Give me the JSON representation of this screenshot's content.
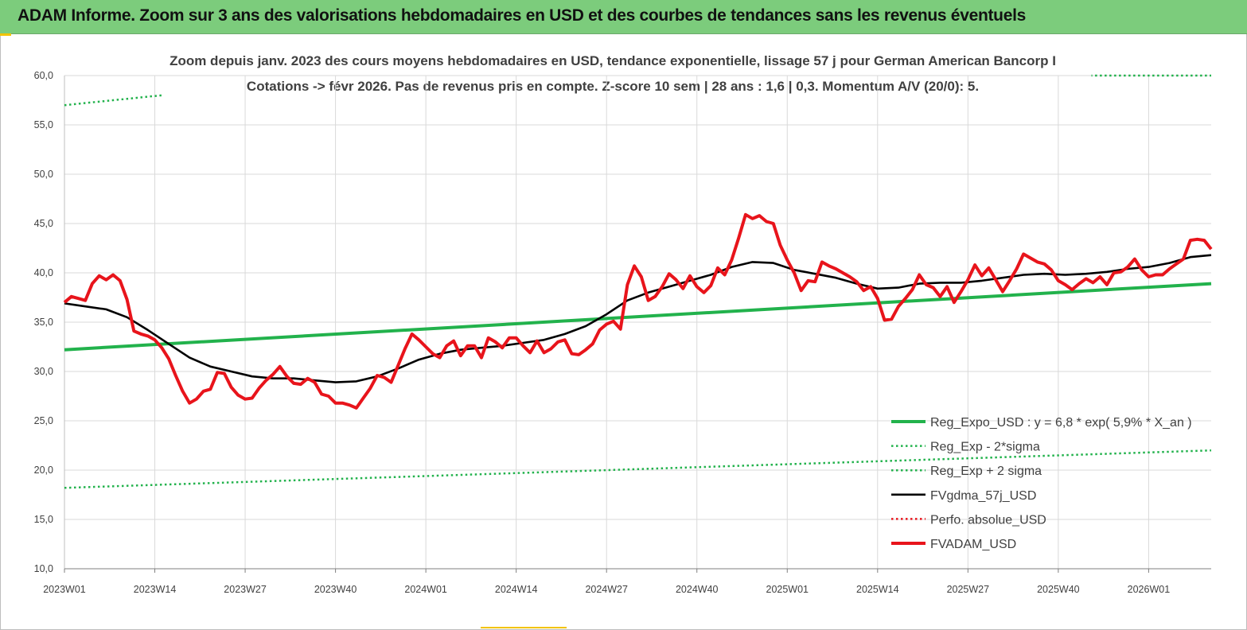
{
  "banner": {
    "title": "ADAM Informe. Zoom sur 3 ans des valorisations hebdomadaires en USD et des courbes de tendances sans les revenus éventuels"
  },
  "colors": {
    "banner_bg": "#7ccc7c",
    "trend": "#22b24c",
    "sigma": "#22b24c",
    "smoothed": "#000000",
    "price": "#e8141b",
    "perf": "#e8141b",
    "grid": "#d9d9d9"
  },
  "chart_data": {
    "type": "line",
    "title": "Zoom depuis janv. 2023 des cours moyens hebdomadaires en USD, tendance exponentielle, lissage 57 j pour German American Bancorp I",
    "subtitle": "Cotations -> févr 2026. Pas de revenus pris en compte. Z-score 10 sem | 28 ans : 1,6 | 0,3. Momentum A/V (20/0): 5.",
    "xlabel": "",
    "ylabel": "",
    "ylim": [
      10,
      60
    ],
    "yticks": [
      "10,0",
      "15,0",
      "20,0",
      "25,0",
      "30,0",
      "35,0",
      "40,0",
      "45,0",
      "50,0",
      "55,0",
      "60,0"
    ],
    "xticks": [
      {
        "label": "2023W01",
        "week": 0
      },
      {
        "label": "2023W14",
        "week": 13
      },
      {
        "label": "2023W27",
        "week": 26
      },
      {
        "label": "2023W40",
        "week": 39
      },
      {
        "label": "2024W01",
        "week": 52
      },
      {
        "label": "2024W14",
        "week": 65
      },
      {
        "label": "2024W27",
        "week": 78
      },
      {
        "label": "2024W40",
        "week": 91
      },
      {
        "label": "2025W01",
        "week": 104
      },
      {
        "label": "2025W14",
        "week": 117
      },
      {
        "label": "2025W27",
        "week": 130
      },
      {
        "label": "2025W40",
        "week": 143
      },
      {
        "label": "2026W01",
        "week": 156
      }
    ],
    "x_range_weeks": [
      0,
      165
    ],
    "grid": "vertical and horizontal",
    "legend_position": "bottom-right",
    "series": [
      {
        "name": "Reg_Expo_USD : y = 6,8 * exp( 5,9% * X_an )",
        "style": "solid-thick",
        "color": "#22b24c",
        "points": [
          [
            0,
            32.2
          ],
          [
            165,
            38.9
          ]
        ]
      },
      {
        "name": "Reg_Exp - 2*sigma",
        "style": "dotted",
        "color": "#22b24c",
        "points": [
          [
            0,
            18.2
          ],
          [
            165,
            22.0
          ]
        ]
      },
      {
        "name": "Reg_Exp + 2 sigma",
        "style": "dotted",
        "color": "#22b24c",
        "points": [
          [
            0,
            57.0
          ],
          [
            14,
            58.0
          ],
          [
            148,
            60.0
          ],
          [
            165,
            60.0
          ]
        ],
        "clip_windows": [
          [
            0,
            14
          ],
          [
            148,
            165
          ]
        ]
      },
      {
        "name": "FVgdma_57j_USD",
        "style": "solid",
        "color": "#000000",
        "points": [
          [
            0,
            36.9
          ],
          [
            3,
            36.6
          ],
          [
            6,
            36.3
          ],
          [
            9,
            35.5
          ],
          [
            12,
            34.2
          ],
          [
            15,
            32.8
          ],
          [
            18,
            31.4
          ],
          [
            21,
            30.5
          ],
          [
            24,
            30.0
          ],
          [
            27,
            29.5
          ],
          [
            30,
            29.3
          ],
          [
            33,
            29.3
          ],
          [
            36,
            29.1
          ],
          [
            39,
            28.9
          ],
          [
            42,
            29.0
          ],
          [
            45,
            29.5
          ],
          [
            48,
            30.3
          ],
          [
            51,
            31.2
          ],
          [
            54,
            31.8
          ],
          [
            57,
            32.2
          ],
          [
            60,
            32.4
          ],
          [
            63,
            32.6
          ],
          [
            66,
            32.9
          ],
          [
            69,
            33.2
          ],
          [
            72,
            33.8
          ],
          [
            75,
            34.6
          ],
          [
            78,
            35.8
          ],
          [
            81,
            37.2
          ],
          [
            84,
            38.0
          ],
          [
            87,
            38.6
          ],
          [
            90,
            39.2
          ],
          [
            93,
            39.8
          ],
          [
            96,
            40.6
          ],
          [
            99,
            41.1
          ],
          [
            102,
            41.0
          ],
          [
            105,
            40.3
          ],
          [
            108,
            39.9
          ],
          [
            111,
            39.5
          ],
          [
            114,
            38.9
          ],
          [
            117,
            38.4
          ],
          [
            120,
            38.5
          ],
          [
            123,
            38.9
          ],
          [
            126,
            39.0
          ],
          [
            129,
            39.0
          ],
          [
            132,
            39.2
          ],
          [
            135,
            39.5
          ],
          [
            138,
            39.8
          ],
          [
            141,
            39.9
          ],
          [
            144,
            39.8
          ],
          [
            147,
            39.9
          ],
          [
            150,
            40.1
          ],
          [
            153,
            40.4
          ],
          [
            156,
            40.6
          ],
          [
            159,
            41.0
          ],
          [
            162,
            41.6
          ],
          [
            165,
            41.8
          ]
        ]
      },
      {
        "name": "Perfo. absolue_USD",
        "style": "dotted",
        "color": "#e8141b",
        "points": []
      },
      {
        "name": "FVADAM_USD",
        "style": "solid-thick",
        "color": "#e8141b",
        "points": [
          [
            0,
            37.0
          ],
          [
            1,
            37.6
          ],
          [
            2,
            37.4
          ],
          [
            3,
            37.2
          ],
          [
            4,
            38.9
          ],
          [
            5,
            39.7
          ],
          [
            6,
            39.3
          ],
          [
            7,
            39.8
          ],
          [
            8,
            39.2
          ],
          [
            9,
            37.3
          ],
          [
            10,
            34.1
          ],
          [
            11,
            33.8
          ],
          [
            12,
            33.6
          ],
          [
            13,
            33.2
          ],
          [
            14,
            32.4
          ],
          [
            15,
            31.3
          ],
          [
            16,
            29.6
          ],
          [
            17,
            28.0
          ],
          [
            18,
            26.8
          ],
          [
            19,
            27.2
          ],
          [
            20,
            28.0
          ],
          [
            21,
            28.2
          ],
          [
            22,
            29.9
          ],
          [
            23,
            29.8
          ],
          [
            24,
            28.4
          ],
          [
            25,
            27.6
          ],
          [
            26,
            27.2
          ],
          [
            27,
            27.3
          ],
          [
            28,
            28.3
          ],
          [
            29,
            29.1
          ],
          [
            30,
            29.7
          ],
          [
            31,
            30.5
          ],
          [
            32,
            29.5
          ],
          [
            33,
            28.8
          ],
          [
            34,
            28.7
          ],
          [
            35,
            29.3
          ],
          [
            36,
            28.9
          ],
          [
            37,
            27.7
          ],
          [
            38,
            27.5
          ],
          [
            39,
            26.8
          ],
          [
            40,
            26.8
          ],
          [
            41,
            26.6
          ],
          [
            42,
            26.3
          ],
          [
            43,
            27.3
          ],
          [
            44,
            28.3
          ],
          [
            45,
            29.6
          ],
          [
            46,
            29.4
          ],
          [
            47,
            28.9
          ],
          [
            48,
            30.6
          ],
          [
            49,
            32.3
          ],
          [
            50,
            33.8
          ],
          [
            51,
            33.2
          ],
          [
            52,
            32.5
          ],
          [
            53,
            31.8
          ],
          [
            54,
            31.4
          ],
          [
            55,
            32.6
          ],
          [
            56,
            33.1
          ],
          [
            57,
            31.6
          ],
          [
            58,
            32.6
          ],
          [
            59,
            32.6
          ],
          [
            60,
            31.4
          ],
          [
            61,
            33.4
          ],
          [
            62,
            33.0
          ],
          [
            63,
            32.4
          ],
          [
            64,
            33.4
          ],
          [
            65,
            33.4
          ],
          [
            66,
            32.6
          ],
          [
            67,
            31.9
          ],
          [
            68,
            33.1
          ],
          [
            69,
            31.9
          ],
          [
            70,
            32.3
          ],
          [
            71,
            33.0
          ],
          [
            72,
            33.2
          ],
          [
            73,
            31.8
          ],
          [
            74,
            31.7
          ],
          [
            75,
            32.2
          ],
          [
            76,
            32.8
          ],
          [
            77,
            34.2
          ],
          [
            78,
            34.8
          ],
          [
            79,
            35.1
          ],
          [
            80,
            34.3
          ],
          [
            81,
            38.8
          ],
          [
            82,
            40.7
          ],
          [
            83,
            39.6
          ],
          [
            84,
            37.2
          ],
          [
            85,
            37.6
          ],
          [
            86,
            38.6
          ],
          [
            87,
            39.9
          ],
          [
            88,
            39.3
          ],
          [
            89,
            38.4
          ],
          [
            90,
            39.7
          ],
          [
            91,
            38.6
          ],
          [
            92,
            38.0
          ],
          [
            93,
            38.7
          ],
          [
            94,
            40.5
          ],
          [
            95,
            39.8
          ],
          [
            96,
            41.3
          ],
          [
            97,
            43.5
          ],
          [
            98,
            45.9
          ],
          [
            99,
            45.5
          ],
          [
            100,
            45.8
          ],
          [
            101,
            45.2
          ],
          [
            102,
            45.0
          ],
          [
            103,
            42.8
          ],
          [
            104,
            41.3
          ],
          [
            105,
            40.0
          ],
          [
            106,
            38.2
          ],
          [
            107,
            39.2
          ],
          [
            108,
            39.1
          ],
          [
            109,
            41.1
          ],
          [
            110,
            40.7
          ],
          [
            111,
            40.4
          ],
          [
            112,
            40.0
          ],
          [
            113,
            39.6
          ],
          [
            114,
            39.1
          ],
          [
            115,
            38.2
          ],
          [
            116,
            38.6
          ],
          [
            117,
            37.4
          ],
          [
            118,
            35.2
          ],
          [
            119,
            35.3
          ],
          [
            120,
            36.6
          ],
          [
            121,
            37.4
          ],
          [
            122,
            38.3
          ],
          [
            123,
            39.8
          ],
          [
            124,
            38.8
          ],
          [
            125,
            38.5
          ],
          [
            126,
            37.6
          ],
          [
            127,
            38.6
          ],
          [
            128,
            37.0
          ],
          [
            129,
            38.1
          ],
          [
            130,
            39.3
          ],
          [
            131,
            40.8
          ],
          [
            132,
            39.7
          ],
          [
            133,
            40.5
          ],
          [
            134,
            39.3
          ],
          [
            135,
            38.1
          ],
          [
            136,
            39.2
          ],
          [
            137,
            40.4
          ],
          [
            138,
            41.9
          ],
          [
            139,
            41.5
          ],
          [
            140,
            41.1
          ],
          [
            141,
            40.9
          ],
          [
            142,
            40.3
          ],
          [
            143,
            39.2
          ],
          [
            144,
            38.8
          ],
          [
            145,
            38.3
          ],
          [
            146,
            38.9
          ],
          [
            147,
            39.4
          ],
          [
            148,
            39.0
          ],
          [
            149,
            39.6
          ],
          [
            150,
            38.8
          ],
          [
            151,
            40.0
          ],
          [
            152,
            40.1
          ],
          [
            153,
            40.6
          ],
          [
            154,
            41.4
          ],
          [
            155,
            40.3
          ],
          [
            156,
            39.6
          ],
          [
            157,
            39.8
          ],
          [
            158,
            39.8
          ],
          [
            159,
            40.4
          ],
          [
            160,
            40.9
          ],
          [
            161,
            41.4
          ],
          [
            162,
            43.3
          ],
          [
            163,
            43.4
          ],
          [
            164,
            43.3
          ],
          [
            165,
            42.4
          ]
        ]
      }
    ]
  }
}
